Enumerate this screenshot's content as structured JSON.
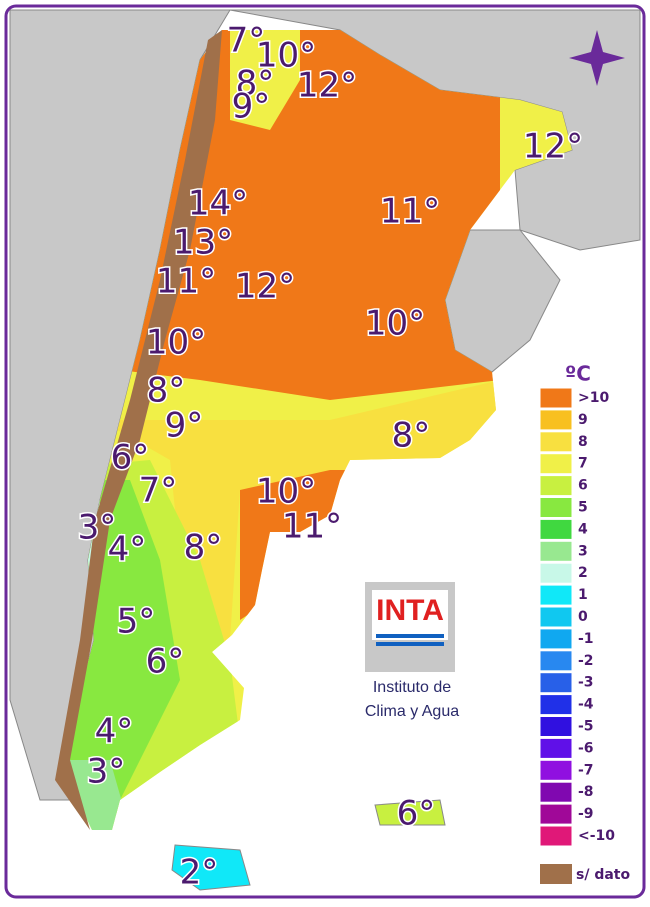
{
  "map": {
    "temperatures": [
      "7°",
      "10°",
      "8°",
      "12°",
      "9°",
      "12°",
      "14°",
      "11°",
      "13°",
      "11°",
      "12°",
      "10°",
      "10°",
      "8°",
      "9°",
      "8°",
      "6°",
      "7°",
      "10°",
      "11°",
      "3°",
      "4°",
      "8°",
      "5°",
      "6°",
      "4°",
      "3°",
      "6°",
      "2°"
    ],
    "legend": {
      "unit": "ºC",
      "items": [
        {
          "label": ">10",
          "color": "#f07818"
        },
        {
          "label": "9",
          "color": "#f8c020"
        },
        {
          "label": "8",
          "color": "#f8e040"
        },
        {
          "label": "7",
          "color": "#f0f048"
        },
        {
          "label": "6",
          "color": "#c8f040"
        },
        {
          "label": "5",
          "color": "#88e840"
        },
        {
          "label": "4",
          "color": "#40d840"
        },
        {
          "label": "3",
          "color": "#98e890"
        },
        {
          "label": "2",
          "color": "#c8f8e8"
        },
        {
          "label": "1",
          "color": "#10e8f8"
        },
        {
          "label": "0",
          "color": "#10c8f0"
        },
        {
          "label": "-1",
          "color": "#10a8f0"
        },
        {
          "label": "-2",
          "color": "#2888f0"
        },
        {
          "label": "-3",
          "color": "#2860e8"
        },
        {
          "label": "-4",
          "color": "#2030e8"
        },
        {
          "label": "-5",
          "color": "#3010e0"
        },
        {
          "label": "-6",
          "color": "#6010e8"
        },
        {
          "label": "-7",
          "color": "#9010e0"
        },
        {
          "label": "-8",
          "color": "#8008b0"
        },
        {
          "label": "-9",
          "color": "#a00898"
        },
        {
          "label": "<-10",
          "color": "#e01878"
        }
      ],
      "no_data": "s/ dato"
    },
    "logo": {
      "name": "INTA",
      "line1": "Instituto de",
      "line2": "Clima y Agua"
    }
  }
}
